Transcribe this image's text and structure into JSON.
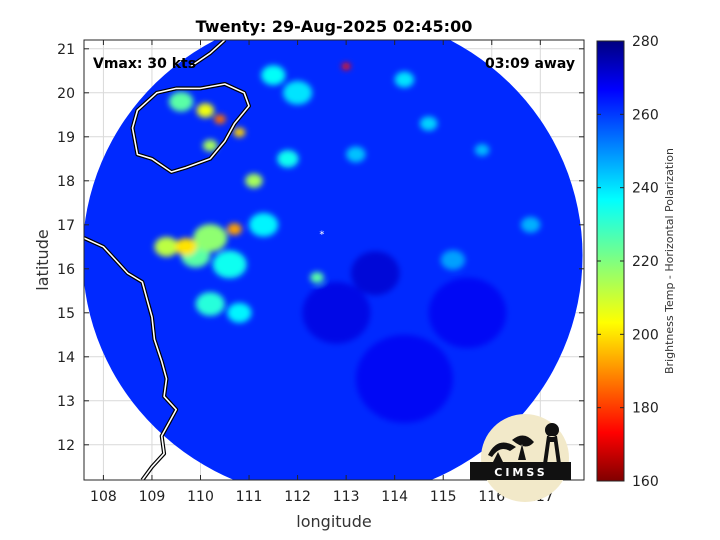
{
  "chart_data": {
    "type": "heatmap",
    "title": "Twenty: 29-Aug-2025 02:45:00",
    "xlabel": "longitude",
    "ylabel": "latitude",
    "xlim": [
      107.6,
      117.9
    ],
    "ylim": [
      11.2,
      21.2
    ],
    "x_ticks": [
      108,
      109,
      110,
      111,
      112,
      113,
      114,
      115,
      116,
      117
    ],
    "y_ticks": [
      12,
      13,
      14,
      15,
      16,
      17,
      18,
      19,
      20,
      21
    ],
    "grid": true,
    "colorbar": {
      "label": "Brightness Temp - Horizontal Polarization",
      "range": [
        160,
        280
      ],
      "ticks": [
        160,
        180,
        200,
        220,
        240,
        260,
        280
      ],
      "colormap": "jet"
    },
    "annotations": {
      "vmax": "Vmax: 30 kts",
      "time_offset": "03:09 away"
    },
    "storm_center": {
      "lon": 112.5,
      "lat": 16.8
    },
    "swath": {
      "center_lon": 112.72,
      "center_lat": 16.3,
      "radius_lon": 5.15,
      "radius_lat": 5.55
    },
    "background_tb": 262,
    "cold_features": [
      {
        "lon": 109.3,
        "lat": 16.5,
        "tb": 212,
        "r": 0.25
      },
      {
        "lon": 109.7,
        "lat": 16.5,
        "tb": 200,
        "r": 0.22
      },
      {
        "lon": 110.2,
        "lat": 16.7,
        "tb": 218,
        "r": 0.35
      },
      {
        "lon": 110.7,
        "lat": 16.9,
        "tb": 192,
        "r": 0.15
      },
      {
        "lon": 109.9,
        "lat": 16.3,
        "tb": 225,
        "r": 0.3
      },
      {
        "lon": 110.6,
        "lat": 16.1,
        "tb": 235,
        "r": 0.35
      },
      {
        "lon": 110.2,
        "lat": 15.2,
        "tb": 232,
        "r": 0.3
      },
      {
        "lon": 110.8,
        "lat": 15.0,
        "tb": 238,
        "r": 0.25
      },
      {
        "lon": 110.4,
        "lat": 19.4,
        "tb": 186,
        "r": 0.12
      },
      {
        "lon": 110.1,
        "lat": 19.6,
        "tb": 205,
        "r": 0.18
      },
      {
        "lon": 109.6,
        "lat": 19.8,
        "tb": 225,
        "r": 0.25
      },
      {
        "lon": 110.8,
        "lat": 19.1,
        "tb": 198,
        "r": 0.12
      },
      {
        "lon": 110.2,
        "lat": 18.8,
        "tb": 215,
        "r": 0.15
      },
      {
        "lon": 111.1,
        "lat": 18.0,
        "tb": 215,
        "r": 0.18
      },
      {
        "lon": 111.8,
        "lat": 18.5,
        "tb": 235,
        "r": 0.22
      },
      {
        "lon": 112.4,
        "lat": 15.8,
        "tb": 225,
        "r": 0.14
      },
      {
        "lon": 113.0,
        "lat": 20.6,
        "tb": 175,
        "r": 0.09
      },
      {
        "lon": 112.0,
        "lat": 20.0,
        "tb": 240,
        "r": 0.3
      },
      {
        "lon": 111.5,
        "lat": 20.4,
        "tb": 236,
        "r": 0.25
      },
      {
        "lon": 114.2,
        "lat": 20.3,
        "tb": 240,
        "r": 0.2
      },
      {
        "lon": 114.7,
        "lat": 19.3,
        "tb": 242,
        "r": 0.18
      },
      {
        "lon": 113.2,
        "lat": 18.6,
        "tb": 244,
        "r": 0.2
      },
      {
        "lon": 115.8,
        "lat": 18.7,
        "tb": 245,
        "r": 0.15
      },
      {
        "lon": 111.3,
        "lat": 17.0,
        "tb": 238,
        "r": 0.3
      },
      {
        "lon": 115.2,
        "lat": 16.2,
        "tb": 248,
        "r": 0.25
      },
      {
        "lon": 116.8,
        "lat": 17.0,
        "tb": 246,
        "r": 0.2
      }
    ],
    "warm_features": [
      {
        "lon": 113.6,
        "lat": 15.9,
        "tb": 272,
        "r": 0.5
      },
      {
        "lon": 112.8,
        "lat": 15.0,
        "tb": 270,
        "r": 0.7
      },
      {
        "lon": 114.2,
        "lat": 13.5,
        "tb": 268,
        "r": 1.0
      },
      {
        "lon": 115.5,
        "lat": 15.0,
        "tb": 268,
        "r": 0.8
      }
    ],
    "coastline_mainland": [
      [
        107.6,
        16.7
      ],
      [
        108.0,
        16.5
      ],
      [
        108.25,
        16.2
      ],
      [
        108.5,
        15.9
      ],
      [
        108.8,
        15.7
      ],
      [
        108.9,
        15.3
      ],
      [
        109.0,
        14.9
      ],
      [
        109.05,
        14.4
      ],
      [
        109.2,
        13.9
      ],
      [
        109.3,
        13.5
      ],
      [
        109.25,
        13.1
      ],
      [
        109.5,
        12.8
      ],
      [
        109.35,
        12.5
      ],
      [
        109.2,
        12.2
      ],
      [
        109.25,
        11.8
      ],
      [
        109.0,
        11.5
      ],
      [
        108.8,
        11.2
      ]
    ],
    "coastline_hainan": [
      [
        108.6,
        19.2
      ],
      [
        108.7,
        19.6
      ],
      [
        109.1,
        20.0
      ],
      [
        109.5,
        20.1
      ],
      [
        110.0,
        20.1
      ],
      [
        110.5,
        20.2
      ],
      [
        110.9,
        20.0
      ],
      [
        111.0,
        19.7
      ],
      [
        110.7,
        19.3
      ],
      [
        110.5,
        18.9
      ],
      [
        110.2,
        18.5
      ],
      [
        109.7,
        18.3
      ],
      [
        109.4,
        18.2
      ],
      [
        109.0,
        18.5
      ],
      [
        108.7,
        18.6
      ],
      [
        108.6,
        19.2
      ]
    ],
    "coastline_south_china": [
      [
        109.8,
        20.6
      ],
      [
        110.2,
        20.9
      ],
      [
        110.5,
        21.2
      ]
    ]
  },
  "logo": {
    "text": "CIMSS"
  }
}
